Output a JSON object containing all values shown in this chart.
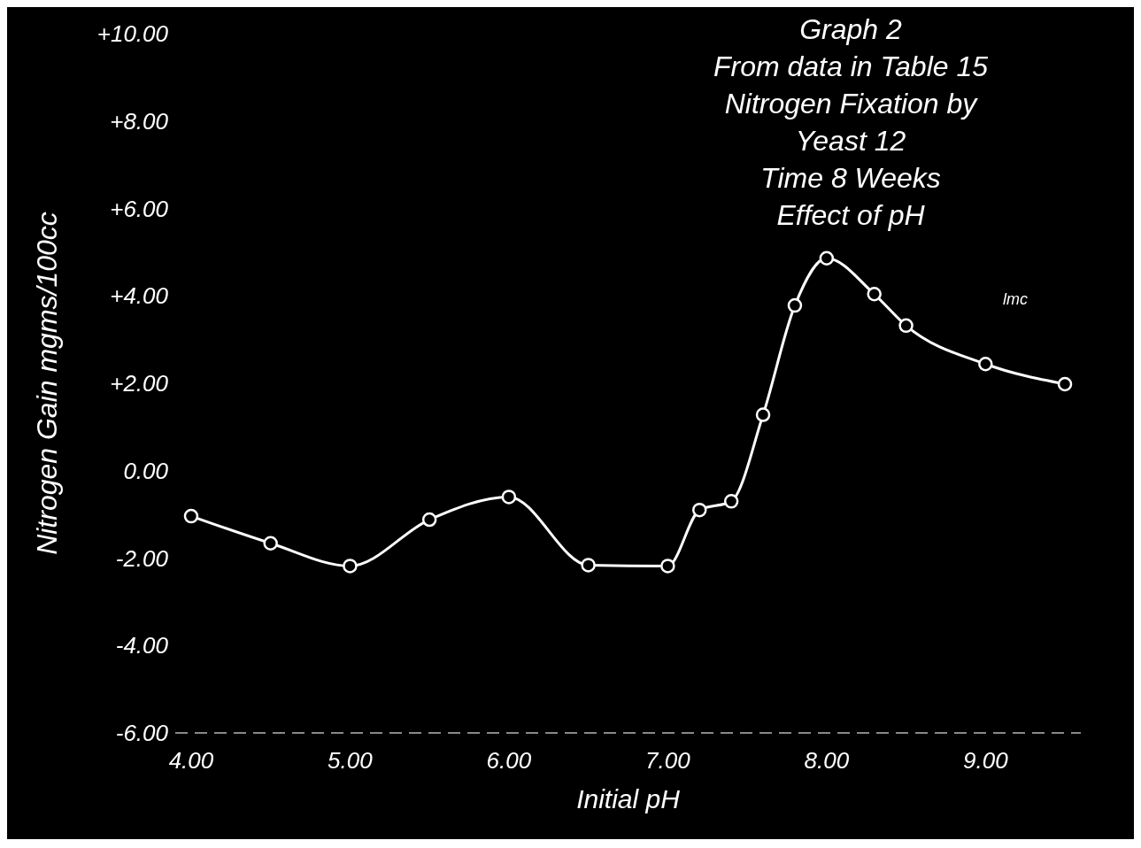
{
  "chart_data": {
    "type": "line",
    "title": "Graph 2\nFrom data in Table 15\nNitrogen Fixation by\nYeast 12\nTime 8 Weeks\nEffect of pH",
    "xlabel": "Initial pH",
    "ylabel": "Nitrogen Gain mgms/100cc",
    "annotations": [
      "lmc"
    ],
    "x": [
      4.0,
      4.5,
      5.0,
      5.5,
      6.0,
      6.5,
      7.0,
      7.2,
      7.4,
      7.6,
      7.8,
      8.0,
      8.3,
      8.5,
      9.0,
      9.5
    ],
    "series": [
      {
        "color": "#ffffff",
        "values": [
          -1.04,
          -1.66,
          -2.18,
          -1.12,
          -0.6,
          -2.16,
          -2.18,
          -0.9,
          -0.7,
          1.28,
          3.78,
          4.86,
          4.04,
          3.32,
          2.44,
          1.98
        ]
      }
    ],
    "xlim": [
      3.9,
      9.6
    ],
    "xticks": [
      {
        "value": 4,
        "label": "4.00"
      },
      {
        "value": 5,
        "label": "5.00"
      },
      {
        "value": 6,
        "label": "6.00"
      },
      {
        "value": 7,
        "label": "7.00"
      },
      {
        "value": 8,
        "label": "8.00"
      },
      {
        "value": 9,
        "label": "9.00"
      }
    ],
    "ylim": [
      -6,
      10
    ],
    "yticks": [
      {
        "value": -6,
        "label": "-6.00"
      },
      {
        "value": -4,
        "label": "-4.00"
      },
      {
        "value": -2,
        "label": "-2.00"
      },
      {
        "value": 0,
        "label": "0.00"
      },
      {
        "value": 2,
        "label": "+2.00"
      },
      {
        "value": 4,
        "label": "+4.00"
      },
      {
        "value": 6,
        "label": "+6.00"
      },
      {
        "value": 8,
        "label": "+8.00"
      },
      {
        "value": 10,
        "label": "+10.00"
      }
    ],
    "marker": "circle",
    "line_style": "solid",
    "grid": false,
    "legend": false
  }
}
